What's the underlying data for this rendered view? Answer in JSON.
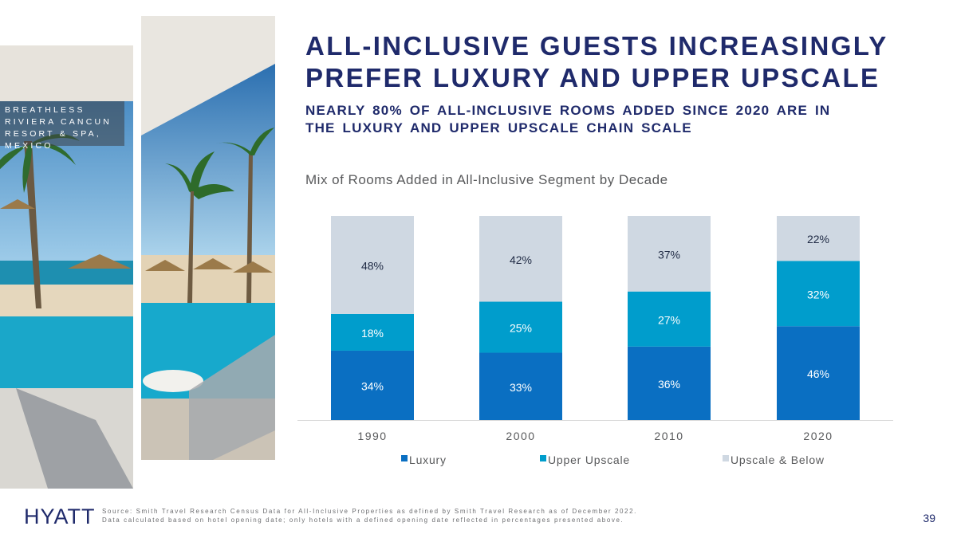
{
  "photo": {
    "caption": "Breathless Riviera Cancun Resort & Spa, Mexico"
  },
  "slide": {
    "title": "ALL-INCLUSIVE GUESTS INCREASINGLY PREFER LUXURY AND UPPER UPSCALE",
    "subtitle": "NEARLY 80% OF ALL-INCLUSIVE ROOMS ADDED SINCE 2020 ARE IN THE LUXURY AND UPPER UPSCALE CHAIN SCALE",
    "page_number": "39"
  },
  "footer": {
    "logo_text": "HYATT",
    "source_line1": "Source: Smith Travel Research Census Data for All-Inclusive Properties as defined by Smith Travel Research as of December 2022.",
    "source_line2": "Data calculated based on hotel opening date; only hotels with a defined opening date reflected in percentages presented above."
  },
  "colors": {
    "luxury": "#0a6fc2",
    "upper_upscale": "#009dcc",
    "upscale_below": "#cfd8e2",
    "title": "#1f2a6b"
  },
  "chart_data": {
    "type": "bar",
    "stacked": true,
    "title": "Mix of Rooms Added in All-Inclusive  Segment by Decade",
    "categories": [
      "1990",
      "2000",
      "2010",
      "2020"
    ],
    "series": [
      {
        "name": "Luxury",
        "values": [
          34,
          33,
          36,
          46
        ],
        "labels": [
          "34%",
          "33%",
          "36%",
          "46%"
        ]
      },
      {
        "name": "Upper Upscale",
        "values": [
          18,
          25,
          27,
          32
        ],
        "labels": [
          "18%",
          "25%",
          "27%",
          "32%"
        ]
      },
      {
        "name": "Upscale & Below",
        "values": [
          48,
          42,
          37,
          22
        ],
        "labels": [
          "48%",
          "42%",
          "37%",
          "22%"
        ]
      }
    ],
    "ylim": [
      0,
      100
    ],
    "legend_position": "bottom",
    "grid": false
  }
}
